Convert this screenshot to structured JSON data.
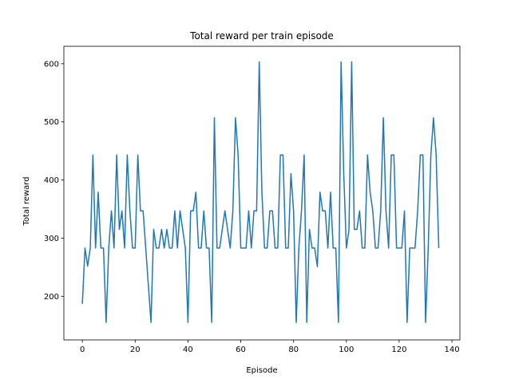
{
  "chart_data": {
    "type": "line",
    "title": "Total reward per train episode",
    "xlabel": "Episode",
    "ylabel": "Total reward",
    "xlim": [
      -7,
      143
    ],
    "ylim": [
      125,
      630
    ],
    "xticks": [
      0,
      20,
      40,
      60,
      80,
      100,
      120,
      140
    ],
    "yticks": [
      200,
      300,
      400,
      500,
      600
    ],
    "grid": false,
    "color": "#1f77b4",
    "x": [
      0,
      1,
      2,
      3,
      4,
      5,
      6,
      7,
      8,
      9,
      10,
      11,
      12,
      13,
      14,
      15,
      16,
      17,
      18,
      19,
      20,
      21,
      22,
      23,
      24,
      25,
      26,
      27,
      28,
      29,
      30,
      31,
      32,
      33,
      34,
      35,
      36,
      37,
      38,
      39,
      40,
      41,
      42,
      43,
      44,
      45,
      46,
      47,
      48,
      49,
      50,
      51,
      52,
      53,
      54,
      55,
      56,
      57,
      58,
      59,
      60,
      61,
      62,
      63,
      64,
      65,
      66,
      67,
      68,
      69,
      70,
      71,
      72,
      73,
      74,
      75,
      76,
      77,
      78,
      79,
      80,
      81,
      82,
      83,
      84,
      85,
      86,
      87,
      88,
      89,
      90,
      91,
      92,
      93,
      94,
      95,
      96,
      97,
      98,
      99,
      100,
      101,
      102,
      103,
      104,
      105,
      106,
      107,
      108,
      109,
      110,
      111,
      112,
      113,
      114,
      115,
      116,
      117,
      118,
      119,
      120,
      121,
      122,
      123,
      124,
      125,
      126,
      127,
      128,
      129,
      130,
      131,
      132,
      133,
      134,
      135
    ],
    "y": [
      187,
      283,
      252,
      283,
      443,
      283,
      379,
      283,
      283,
      155,
      283,
      347,
      283,
      443,
      315,
      347,
      283,
      443,
      347,
      283,
      283,
      443,
      347,
      347,
      283,
      219,
      155,
      315,
      283,
      283,
      315,
      283,
      315,
      283,
      283,
      347,
      283,
      347,
      315,
      283,
      155,
      347,
      347,
      379,
      283,
      283,
      347,
      283,
      283,
      155,
      507,
      283,
      283,
      315,
      347,
      315,
      283,
      347,
      507,
      443,
      283,
      283,
      283,
      347,
      283,
      347,
      347,
      603,
      379,
      283,
      283,
      347,
      347,
      283,
      283,
      443,
      443,
      283,
      283,
      411,
      347,
      155,
      283,
      347,
      443,
      155,
      315,
      283,
      283,
      251,
      379,
      347,
      347,
      283,
      379,
      283,
      283,
      155,
      603,
      411,
      283,
      315,
      603,
      315,
      315,
      347,
      283,
      283,
      443,
      379,
      347,
      283,
      283,
      347,
      507,
      347,
      283,
      443,
      443,
      283,
      283,
      283,
      347,
      155,
      283,
      283,
      283,
      347,
      443,
      443,
      155,
      283,
      443,
      507,
      443,
      283
    ]
  }
}
